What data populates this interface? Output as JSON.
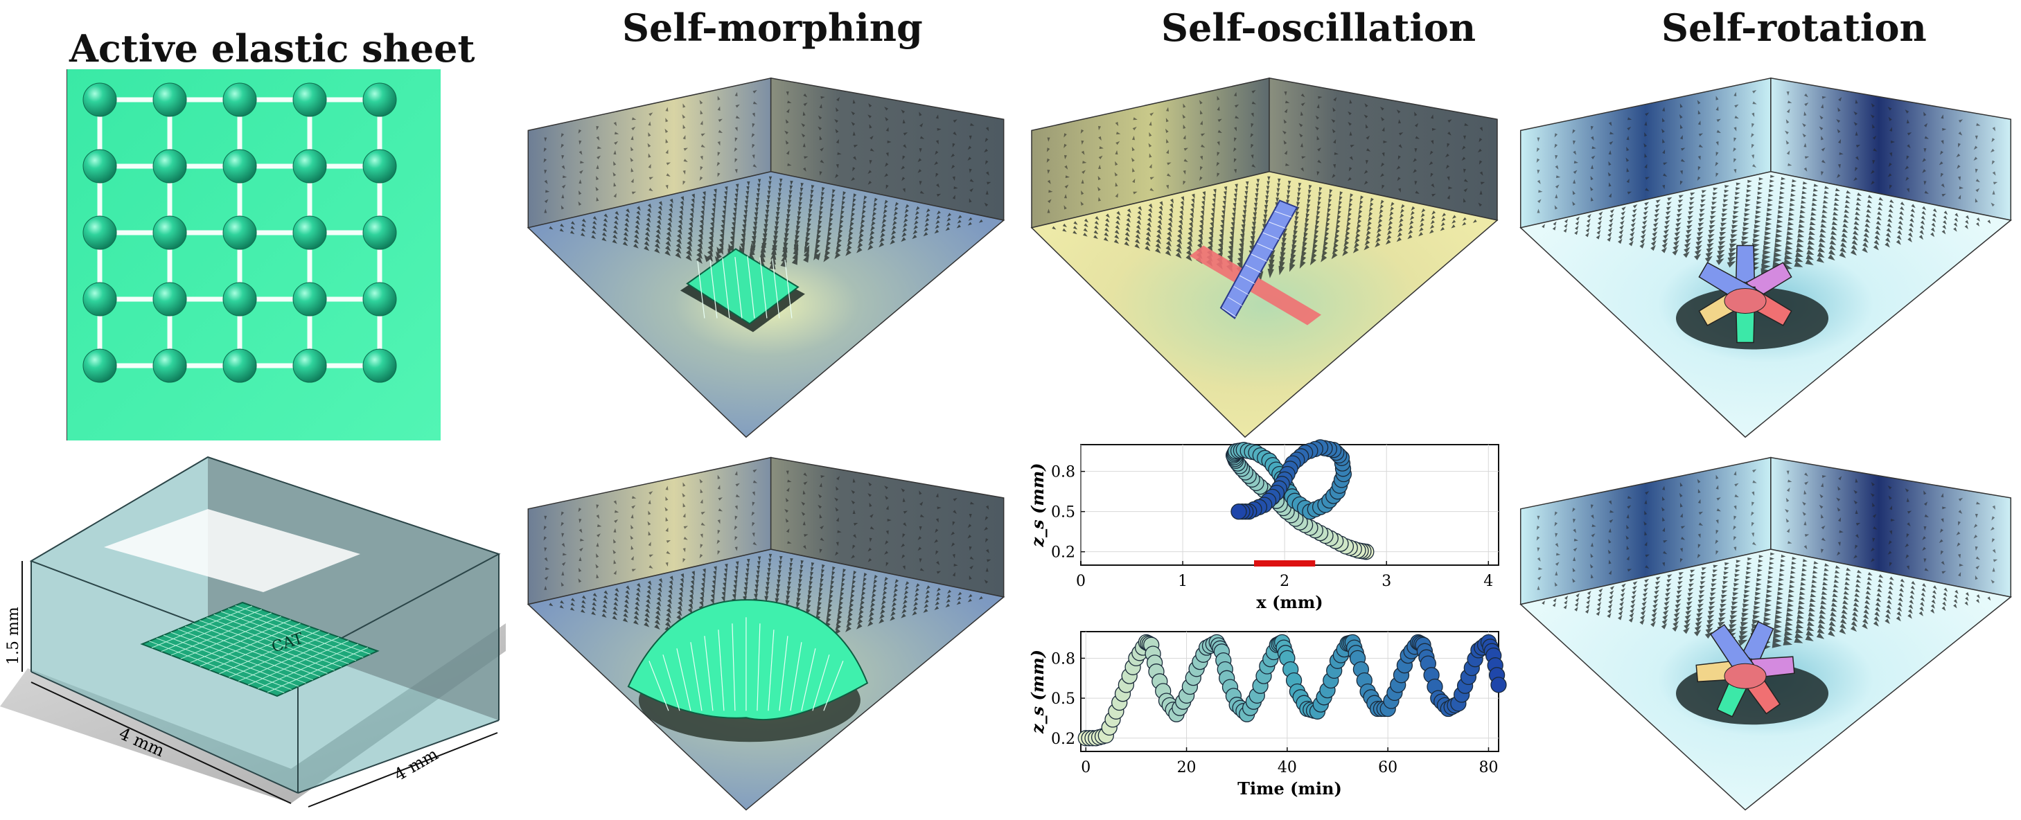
{
  "titles": {
    "col1": "Active elastic sheet",
    "col2": "Self-morphing",
    "col3": "Self-oscillation",
    "col4": "Self-rotation"
  },
  "box_labels": {
    "height": "1.5 mm",
    "width": "4 mm",
    "depth": "4 mm",
    "sheet_tag": "CAT"
  },
  "colors": {
    "sheet_green": "#3cedaa",
    "bead_green": "#1fb987",
    "wall_gray": "#5f6a70",
    "floor_blue": "#7d99c1",
    "floor_yellow": "#e6e3a3",
    "floor_cyan": "#d4f3f7",
    "strip_blue": "#7f97ee",
    "strip_red": "#f07072",
    "marker_red": "#dd1111"
  },
  "chart_data": [
    {
      "type": "scatter",
      "xlabel": "x (mm)",
      "ylabel": "z_s (mm)",
      "xlim": [
        0,
        4.1
      ],
      "ylim": [
        0.1,
        1.0
      ],
      "x_ticks": [
        "0",
        "1",
        "2",
        "3",
        "4"
      ],
      "y_ticks": [
        "0.2",
        "0.5",
        "0.8"
      ],
      "grid": true,
      "marker_bar": {
        "x": [
          1.7,
          2.3
        ],
        "color": "#dd1111"
      },
      "x": [
        2.8,
        2.72,
        2.6,
        2.45,
        2.3,
        2.15,
        2.02,
        1.92,
        1.8,
        1.68,
        1.58,
        1.52,
        1.5,
        1.52,
        1.6,
        1.72,
        1.85,
        1.95,
        2.02,
        2.1,
        2.25,
        2.4,
        2.52,
        2.58,
        2.56,
        2.48,
        2.35,
        2.2,
        2.08,
        2.0,
        1.92,
        1.8,
        1.65,
        1.55
      ],
      "y": [
        0.2,
        0.21,
        0.24,
        0.3,
        0.36,
        0.42,
        0.5,
        0.58,
        0.66,
        0.74,
        0.82,
        0.88,
        0.92,
        0.95,
        0.96,
        0.94,
        0.88,
        0.78,
        0.68,
        0.58,
        0.5,
        0.55,
        0.65,
        0.78,
        0.9,
        0.96,
        0.98,
        0.94,
        0.86,
        0.74,
        0.64,
        0.55,
        0.5,
        0.5
      ]
    },
    {
      "type": "line",
      "xlabel": "Time (min)",
      "ylabel": "z_s (mm)",
      "xlim": [
        -1,
        82
      ],
      "ylim": [
        0.1,
        1.0
      ],
      "x_ticks": [
        "0",
        "20",
        "40",
        "60",
        "80"
      ],
      "y_ticks": [
        "0.2",
        "0.5",
        "0.8"
      ],
      "grid": true,
      "x": [
        0,
        2,
        4,
        6,
        8,
        10,
        12,
        13,
        14,
        16,
        18,
        20,
        22,
        24,
        26,
        27,
        28,
        30,
        32,
        34,
        36,
        38,
        39,
        40,
        42,
        44,
        46,
        48,
        50,
        52,
        53,
        54,
        56,
        58,
        60,
        62,
        64,
        66,
        67,
        68,
        70,
        72,
        74,
        76,
        78,
        80,
        81,
        82
      ],
      "y": [
        0.2,
        0.2,
        0.22,
        0.4,
        0.6,
        0.8,
        0.92,
        0.9,
        0.7,
        0.48,
        0.38,
        0.52,
        0.72,
        0.88,
        0.92,
        0.85,
        0.65,
        0.45,
        0.38,
        0.52,
        0.74,
        0.9,
        0.92,
        0.8,
        0.55,
        0.42,
        0.4,
        0.56,
        0.78,
        0.91,
        0.92,
        0.8,
        0.55,
        0.42,
        0.42,
        0.6,
        0.82,
        0.92,
        0.9,
        0.76,
        0.5,
        0.42,
        0.46,
        0.66,
        0.86,
        0.92,
        0.82,
        0.6
      ]
    }
  ]
}
